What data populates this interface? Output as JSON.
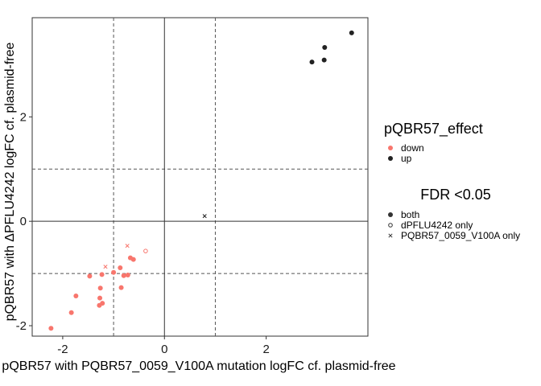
{
  "chart_data": {
    "type": "scatter",
    "xlabel": "pQBR57 with PQBR57_0059_V100A mutation logFC cf. plasmid-free",
    "ylabel": "pQBR57 with ΔPFLU4242 logFC cf. plasmid-free",
    "xlim": [
      -2.6,
      4.0
    ],
    "ylim": [
      -2.2,
      3.9
    ],
    "xticks": [
      -2,
      0,
      2
    ],
    "xtick_labels": [
      "-2",
      "0",
      "2"
    ],
    "yticks": [
      -2,
      0,
      2
    ],
    "ytick_labels": [
      "-2",
      "0",
      "2"
    ],
    "grid": false,
    "reference_lines": {
      "solid": {
        "x": [
          0
        ],
        "y": [
          0
        ]
      },
      "dashed": {
        "x": [
          -1,
          1
        ],
        "y": [
          -1,
          1
        ]
      }
    },
    "legend_placement": "right",
    "color_legend": {
      "title": "pQBR57_effect",
      "entries": [
        {
          "label": "down",
          "color": "#F8766D"
        },
        {
          "label": "up",
          "color": "#222222"
        }
      ]
    },
    "shape_legend": {
      "title": "FDR <0.05",
      "entries": [
        {
          "label": "both",
          "shape": "filled-circle"
        },
        {
          "label": "dPFLU4242 only",
          "shape": "open-circle"
        },
        {
          "label": "PQBR57_0059_V100A only",
          "shape": "cross"
        }
      ]
    },
    "points": [
      {
        "x": 3.68,
        "y": 3.61,
        "effect": "up",
        "fdr": "both"
      },
      {
        "x": 3.15,
        "y": 3.33,
        "effect": "up",
        "fdr": "both"
      },
      {
        "x": 3.14,
        "y": 3.09,
        "effect": "up",
        "fdr": "both"
      },
      {
        "x": 2.9,
        "y": 3.05,
        "effect": "up",
        "fdr": "both"
      },
      {
        "x": 0.79,
        "y": 0.1,
        "effect": "up",
        "fdr": "PQBR57_0059_V100A only"
      },
      {
        "x": -0.37,
        "y": -0.57,
        "effect": "down",
        "fdr": "dPFLU4242 only"
      },
      {
        "x": -0.73,
        "y": -0.47,
        "effect": "down",
        "fdr": "PQBR57_0059_V100A only"
      },
      {
        "x": -1.16,
        "y": -0.87,
        "effect": "down",
        "fdr": "PQBR57_0059_V100A only"
      },
      {
        "x": -0.67,
        "y": -0.7,
        "effect": "down",
        "fdr": "both"
      },
      {
        "x": -0.61,
        "y": -0.73,
        "effect": "down",
        "fdr": "both"
      },
      {
        "x": -0.87,
        "y": -0.89,
        "effect": "down",
        "fdr": "both"
      },
      {
        "x": -1.0,
        "y": -0.98,
        "effect": "down",
        "fdr": "both"
      },
      {
        "x": -0.72,
        "y": -1.03,
        "effect": "down",
        "fdr": "both"
      },
      {
        "x": -0.8,
        "y": -1.04,
        "effect": "down",
        "fdr": "both"
      },
      {
        "x": -1.47,
        "y": -1.05,
        "effect": "down",
        "fdr": "both"
      },
      {
        "x": -1.23,
        "y": -1.02,
        "effect": "down",
        "fdr": "both"
      },
      {
        "x": -1.26,
        "y": -1.28,
        "effect": "down",
        "fdr": "both"
      },
      {
        "x": -0.85,
        "y": -1.27,
        "effect": "down",
        "fdr": "both"
      },
      {
        "x": -1.74,
        "y": -1.43,
        "effect": "down",
        "fdr": "both"
      },
      {
        "x": -1.27,
        "y": -1.47,
        "effect": "down",
        "fdr": "both"
      },
      {
        "x": -1.22,
        "y": -1.57,
        "effect": "down",
        "fdr": "both"
      },
      {
        "x": -1.28,
        "y": -1.61,
        "effect": "down",
        "fdr": "both"
      },
      {
        "x": -1.83,
        "y": -1.75,
        "effect": "down",
        "fdr": "both"
      },
      {
        "x": -2.23,
        "y": -2.05,
        "effect": "down",
        "fdr": "both"
      }
    ]
  }
}
